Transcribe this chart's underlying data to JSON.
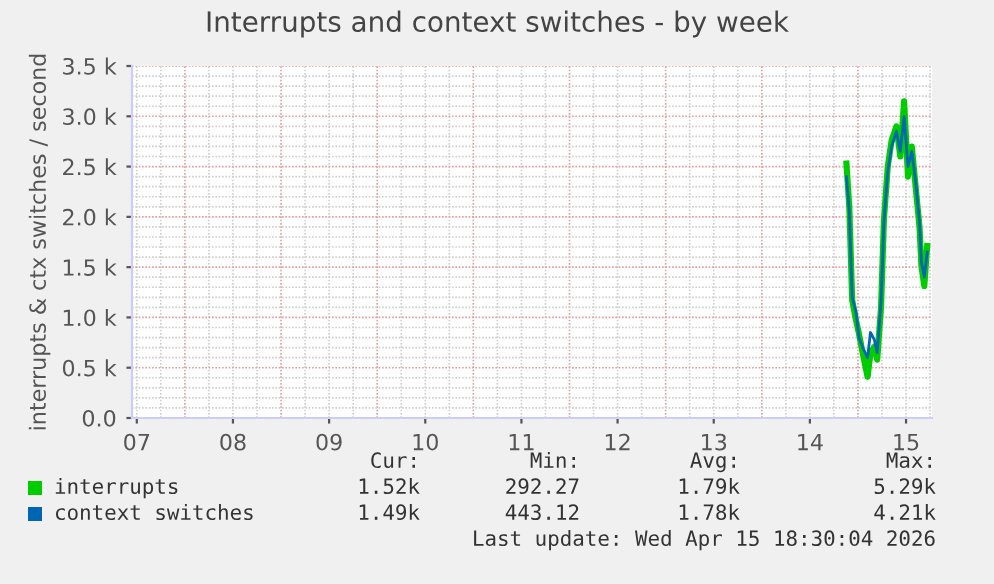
{
  "chart_data": {
    "type": "line",
    "title": "Interrupts and context switches - by week",
    "ylabel": "interrupts & ctx switches / second",
    "x": [
      14.88,
      14.91,
      14.94,
      14.98,
      15.01,
      15.05,
      15.1,
      15.13,
      15.17,
      15.2,
      15.24,
      15.27,
      15.31,
      15.35,
      15.4,
      15.44,
      15.48,
      15.52,
      15.56,
      15.6,
      15.64,
      15.66,
      15.69,
      15.72
    ],
    "series": [
      {
        "name": "interrupts",
        "color": "#00cc00",
        "values": [
          2530,
          2100,
          1170,
          970,
          840,
          640,
          410,
          640,
          710,
          580,
          1100,
          1970,
          2500,
          2760,
          2900,
          2600,
          3150,
          2400,
          2700,
          2300,
          1900,
          1510,
          1310,
          1710
        ]
      },
      {
        "name": "context switches",
        "color": "#0066b3",
        "values": [
          2400,
          2050,
          1200,
          1050,
          800,
          700,
          600,
          850,
          780,
          650,
          1150,
          1950,
          2450,
          2700,
          2850,
          2650,
          3000,
          2500,
          2650,
          2350,
          1950,
          1550,
          1400,
          1650
        ]
      }
    ],
    "xlim": [
      7.45,
      15.77
    ],
    "xticks": [
      {
        "value": 7.5,
        "label": "07"
      },
      {
        "value": 8.5,
        "label": "08"
      },
      {
        "value": 9.5,
        "label": "09"
      },
      {
        "value": 10.5,
        "label": "10"
      },
      {
        "value": 11.5,
        "label": "11"
      },
      {
        "value": 12.5,
        "label": "12"
      },
      {
        "value": 13.5,
        "label": "13"
      },
      {
        "value": 14.5,
        "label": "14"
      },
      {
        "value": 15.5,
        "label": "15"
      }
    ],
    "ylim": [
      0,
      3500
    ],
    "yticks": [
      {
        "value": 0,
        "label": "0.0"
      },
      {
        "value": 500,
        "label": "0.5 k"
      },
      {
        "value": 1000,
        "label": "1.0 k"
      },
      {
        "value": 1500,
        "label": "1.5 k"
      },
      {
        "value": 2000,
        "label": "2.0 k"
      },
      {
        "value": 2500,
        "label": "2.5 k"
      },
      {
        "value": 3000,
        "label": "3.0 k"
      },
      {
        "value": 3500,
        "label": "3.5 k"
      }
    ],
    "grid": true,
    "legend": "bottom",
    "annotations": [
      "Cur:",
      "Min:",
      "Avg:",
      "Max:",
      "1.52k",
      "292.27",
      "1.79k",
      "5.29k",
      "1.49k",
      "443.12",
      "1.78k",
      "4.21k",
      "Last update: Wed Apr 15 18:30:04 2026"
    ]
  }
}
